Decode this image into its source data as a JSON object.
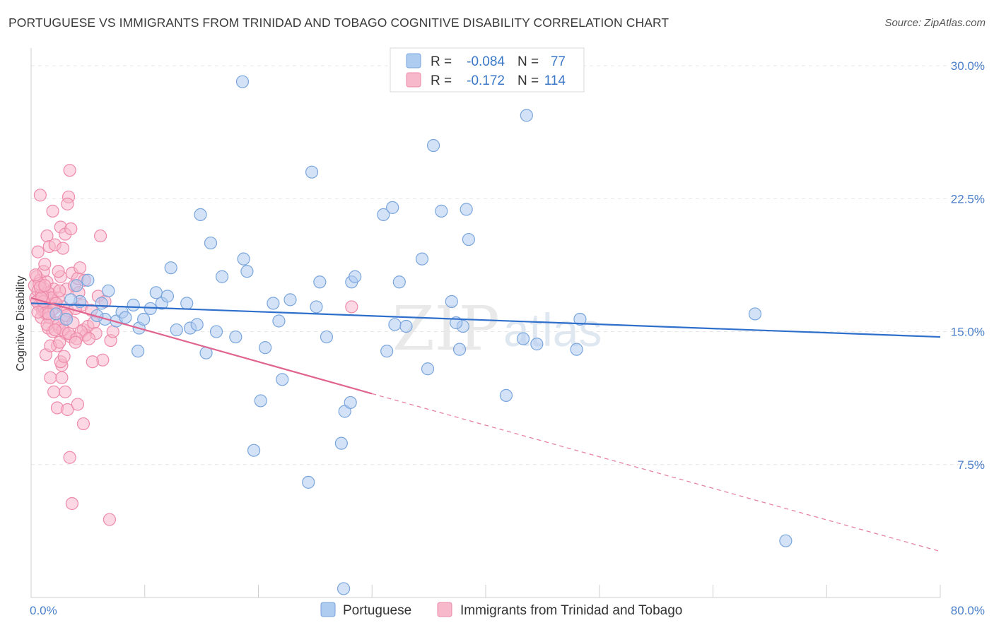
{
  "title": "PORTUGUESE VS IMMIGRANTS FROM TRINIDAD AND TOBAGO COGNITIVE DISABILITY CORRELATION CHART",
  "source": "Source: ZipAtlas.com",
  "watermark": {
    "zip": "ZIP",
    "atlas": "atlas"
  },
  "colors": {
    "blue_fill": "#aecbf0",
    "blue_stroke": "#7aa6dc",
    "blue_line": "#2f6fcc",
    "pink_fill": "#f7b8cc",
    "pink_stroke": "#ee8aaa",
    "pink_line": "#e0648f",
    "tick": "#4a7fc9",
    "grid": "#e6e6e6"
  },
  "legend": {
    "rows": [
      {
        "r_label": "R =",
        "r_value": "-0.084",
        "n_label": "N =",
        "n_value": "77"
      },
      {
        "r_label": "R =",
        "r_value": "-0.172",
        "n_label": "N =",
        "n_value": "114"
      }
    ]
  },
  "chart_data": {
    "type": "scatter",
    "title": "PORTUGUESE VS IMMIGRANTS FROM TRINIDAD AND TOBAGO COGNITIVE DISABILITY CORRELATION CHART",
    "xlabel": "",
    "ylabel": "Cognitive Disability",
    "xlim": [
      0,
      80
    ],
    "ylim": [
      0,
      31
    ],
    "x_tick_labels": [
      "0.0%",
      "80.0%"
    ],
    "y_ticks": [
      7.5,
      15.0,
      22.5,
      30.0
    ],
    "y_tick_labels": [
      "7.5%",
      "15.0%",
      "22.5%",
      "30.0%"
    ],
    "grid": true,
    "legend_position": "bottom",
    "series": [
      {
        "name": "Portuguese",
        "color": "#aecbf0",
        "trend": {
          "x0": 0,
          "y0": 16.6,
          "x1": 80,
          "y1": 14.7
        },
        "points": [
          [
            2.2,
            16.0
          ],
          [
            3.1,
            15.7
          ],
          [
            4.0,
            17.6
          ],
          [
            4.3,
            16.7
          ],
          [
            5.0,
            17.9
          ],
          [
            6.2,
            16.6
          ],
          [
            6.5,
            15.7
          ],
          [
            6.8,
            17.3
          ],
          [
            7.5,
            15.6
          ],
          [
            8.0,
            16.1
          ],
          [
            8.3,
            15.8
          ],
          [
            9.0,
            16.5
          ],
          [
            9.5,
            15.2
          ],
          [
            9.9,
            15.7
          ],
          [
            10.5,
            16.3
          ],
          [
            11.0,
            17.2
          ],
          [
            11.5,
            16.6
          ],
          [
            12.3,
            18.6
          ],
          [
            12.8,
            15.1
          ],
          [
            13.7,
            16.6
          ],
          [
            14.0,
            15.2
          ],
          [
            14.6,
            15.4
          ],
          [
            14.9,
            21.6
          ],
          [
            15.4,
            13.8
          ],
          [
            15.8,
            20.0
          ],
          [
            16.3,
            15.0
          ],
          [
            16.8,
            18.1
          ],
          [
            18.0,
            14.7
          ],
          [
            18.6,
            29.1
          ],
          [
            18.7,
            19.1
          ],
          [
            19.0,
            18.4
          ],
          [
            19.6,
            8.3
          ],
          [
            20.2,
            11.1
          ],
          [
            20.6,
            14.1
          ],
          [
            21.3,
            16.6
          ],
          [
            22.1,
            12.3
          ],
          [
            22.8,
            16.8
          ],
          [
            24.4,
            6.5
          ],
          [
            24.7,
            24.0
          ],
          [
            25.1,
            16.4
          ],
          [
            25.4,
            17.8
          ],
          [
            26.0,
            14.7
          ],
          [
            27.3,
            8.7
          ],
          [
            27.6,
            10.5
          ],
          [
            28.1,
            11.0
          ],
          [
            28.2,
            17.8
          ],
          [
            28.5,
            18.1
          ],
          [
            31.0,
            21.6
          ],
          [
            31.3,
            13.9
          ],
          [
            31.8,
            22.0
          ],
          [
            32.0,
            15.4
          ],
          [
            32.4,
            17.8
          ],
          [
            33.0,
            15.3
          ],
          [
            34.4,
            19.1
          ],
          [
            34.9,
            12.9
          ],
          [
            35.4,
            25.5
          ],
          [
            36.1,
            21.8
          ],
          [
            37.0,
            16.7
          ],
          [
            37.7,
            14.0
          ],
          [
            38.0,
            15.3
          ],
          [
            38.3,
            21.9
          ],
          [
            38.5,
            20.2
          ],
          [
            41.8,
            11.4
          ],
          [
            43.6,
            27.2
          ],
          [
            43.3,
            14.6
          ],
          [
            48.0,
            14.0
          ],
          [
            48.3,
            15.7
          ],
          [
            63.7,
            16.0
          ],
          [
            66.4,
            3.2
          ],
          [
            27.5,
            0.5
          ],
          [
            37.4,
            15.5
          ],
          [
            21.8,
            15.6
          ],
          [
            9.4,
            13.9
          ],
          [
            5.8,
            15.9
          ],
          [
            3.5,
            16.8
          ],
          [
            12.0,
            17.0
          ],
          [
            44.5,
            14.3
          ]
        ]
      },
      {
        "name": "Immigrants from Trinidad and Tobago",
        "color": "#f7b8cc",
        "trend": {
          "x0": 0,
          "y0": 16.9,
          "x1": 30,
          "y1": 11.5,
          "dash_x1": 80,
          "dash_y1": 2.6
        },
        "points": [
          [
            0.3,
            17.6
          ],
          [
            0.4,
            16.9
          ],
          [
            0.5,
            18.1
          ],
          [
            0.6,
            17.3
          ],
          [
            0.7,
            16.5
          ],
          [
            0.8,
            17.9
          ],
          [
            0.9,
            17.1
          ],
          [
            1.0,
            16.2
          ],
          [
            1.1,
            18.4
          ],
          [
            1.2,
            17.4
          ],
          [
            1.3,
            16.0
          ],
          [
            1.4,
            17.8
          ],
          [
            1.5,
            15.2
          ],
          [
            1.6,
            16.8
          ],
          [
            1.7,
            17.1
          ],
          [
            1.8,
            16.2
          ],
          [
            1.9,
            15.0
          ],
          [
            2.0,
            17.4
          ],
          [
            2.1,
            16.6
          ],
          [
            2.2,
            15.5
          ],
          [
            2.3,
            14.2
          ],
          [
            2.4,
            16.9
          ],
          [
            2.5,
            15.2
          ],
          [
            2.6,
            18.1
          ],
          [
            2.7,
            13.1
          ],
          [
            2.8,
            16.4
          ],
          [
            2.9,
            15.7
          ],
          [
            3.0,
            14.9
          ],
          [
            3.1,
            17.4
          ],
          [
            3.2,
            16.2
          ],
          [
            0.6,
            19.5
          ],
          [
            0.8,
            22.7
          ],
          [
            1.2,
            18.8
          ],
          [
            1.4,
            20.4
          ],
          [
            1.6,
            19.8
          ],
          [
            1.9,
            21.8
          ],
          [
            2.1,
            19.9
          ],
          [
            2.4,
            18.4
          ],
          [
            2.6,
            20.9
          ],
          [
            2.8,
            19.7
          ],
          [
            3.0,
            20.5
          ],
          [
            3.3,
            22.6
          ],
          [
            3.5,
            20.8
          ],
          [
            3.6,
            18.3
          ],
          [
            3.8,
            17.6
          ],
          [
            4.1,
            18.0
          ],
          [
            4.3,
            18.6
          ],
          [
            4.5,
            16.5
          ],
          [
            4.6,
            15.1
          ],
          [
            4.8,
            14.8
          ],
          [
            5.0,
            15.3
          ],
          [
            5.3,
            16.2
          ],
          [
            5.5,
            15.5
          ],
          [
            5.7,
            14.9
          ],
          [
            5.9,
            17.0
          ],
          [
            6.1,
            20.4
          ],
          [
            6.3,
            13.4
          ],
          [
            6.5,
            16.7
          ],
          [
            7.0,
            14.5
          ],
          [
            7.2,
            15.0
          ],
          [
            3.4,
            24.1
          ],
          [
            3.2,
            22.2
          ],
          [
            1.3,
            13.7
          ],
          [
            1.7,
            12.4
          ],
          [
            2.0,
            11.6
          ],
          [
            2.3,
            10.7
          ],
          [
            2.6,
            13.3
          ],
          [
            3.0,
            11.6
          ],
          [
            3.2,
            10.6
          ],
          [
            3.4,
            7.9
          ],
          [
            3.6,
            5.3
          ],
          [
            4.1,
            10.9
          ],
          [
            4.6,
            9.8
          ],
          [
            6.9,
            4.4
          ],
          [
            0.9,
            15.8
          ],
          [
            1.1,
            16.4
          ],
          [
            1.5,
            17.2
          ],
          [
            1.8,
            16.9
          ],
          [
            2.2,
            16.6
          ],
          [
            2.5,
            17.3
          ],
          [
            0.5,
            16.7
          ],
          [
            0.7,
            17.7
          ],
          [
            1.0,
            17.0
          ],
          [
            1.3,
            16.1
          ],
          [
            1.6,
            15.8
          ],
          [
            2.0,
            16.3
          ],
          [
            2.4,
            15.4
          ],
          [
            2.8,
            15.1
          ],
          [
            3.1,
            15.9
          ],
          [
            3.5,
            14.7
          ],
          [
            3.9,
            16.3
          ],
          [
            4.2,
            17.2
          ],
          [
            4.4,
            15.0
          ],
          [
            4.7,
            17.9
          ],
          [
            5.1,
            14.6
          ],
          [
            5.4,
            13.3
          ],
          [
            0.4,
            18.2
          ],
          [
            0.8,
            17.5
          ],
          [
            1.1,
            16.7
          ],
          [
            1.4,
            15.4
          ],
          [
            1.7,
            14.2
          ],
          [
            2.1,
            15.1
          ],
          [
            2.5,
            14.4
          ],
          [
            2.9,
            13.6
          ],
          [
            3.3,
            14.9
          ],
          [
            3.7,
            15.5
          ],
          [
            0.6,
            16.1
          ],
          [
            0.9,
            16.9
          ],
          [
            1.2,
            17.6
          ],
          [
            1.5,
            16.0
          ],
          [
            28.2,
            16.4
          ],
          [
            4.0,
            14.6
          ],
          [
            2.7,
            12.4
          ],
          [
            3.9,
            14.4
          ]
        ]
      }
    ]
  }
}
